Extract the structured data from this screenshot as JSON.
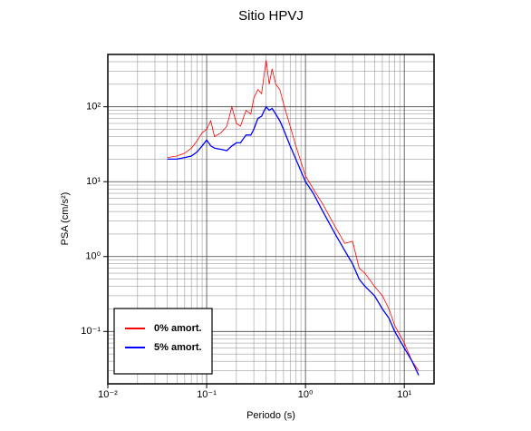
{
  "chart_data": {
    "type": "line",
    "title": "Sitio HPVJ",
    "x_label": "Periodo (s)",
    "y_label": "PSA (cm/s²)",
    "log_x": true,
    "log_y": true,
    "grid": true,
    "legend": "lower left",
    "xlim": [
      0.01,
      20
    ],
    "ylim": [
      0.02,
      500
    ],
    "xticks": [
      {
        "value": 0.01,
        "label": "10⁻²"
      },
      {
        "value": 0.1,
        "label": "10⁻¹"
      },
      {
        "value": 1,
        "label": "10⁰"
      },
      {
        "value": 10,
        "label": "10¹"
      }
    ],
    "yticks": [
      {
        "value": 0.1,
        "label": "10⁻¹"
      },
      {
        "value": 1,
        "label": "10⁰"
      },
      {
        "value": 10,
        "label": "10¹"
      },
      {
        "value": 100,
        "label": "10²"
      }
    ],
    "xticks_minor": [
      0.02,
      0.03,
      0.04,
      0.05,
      0.06,
      0.07,
      0.08,
      0.09,
      0.2,
      0.3,
      0.4,
      0.5,
      0.6,
      0.7,
      0.8,
      0.9,
      2,
      3,
      4,
      5,
      6,
      7,
      8,
      9
    ],
    "yticks_minor": [
      0.03,
      0.04,
      0.05,
      0.06,
      0.07,
      0.08,
      0.09,
      0.2,
      0.3,
      0.4,
      0.5,
      0.6,
      0.7,
      0.8,
      0.9,
      2,
      3,
      4,
      5,
      6,
      7,
      8,
      9,
      20,
      30,
      40,
      50,
      60,
      70,
      80,
      90,
      200,
      300,
      400
    ],
    "x": [
      0.04,
      0.05,
      0.06,
      0.07,
      0.08,
      0.09,
      0.1,
      0.11,
      0.12,
      0.14,
      0.16,
      0.18,
      0.2,
      0.22,
      0.25,
      0.28,
      0.3,
      0.33,
      0.36,
      0.4,
      0.43,
      0.46,
      0.5,
      0.55,
      0.6,
      0.7,
      0.8,
      1.0,
      1.2,
      1.5,
      2,
      2.5,
      3,
      3.5,
      4,
      5,
      6,
      7,
      8,
      10,
      12,
      14
    ],
    "series": [
      {
        "name": "0% amort.",
        "color": "#ff0000",
        "values": [
          21,
          22,
          24,
          28,
          35,
          45,
          50,
          65,
          40,
          45,
          55,
          100,
          60,
          55,
          90,
          80,
          130,
          170,
          150,
          420,
          200,
          320,
          200,
          170,
          110,
          55,
          30,
          12,
          8,
          5,
          2.5,
          1.5,
          1.6,
          0.7,
          0.6,
          0.4,
          0.3,
          0.2,
          0.12,
          0.07,
          0.04,
          0.03
        ]
      },
      {
        "name": "5% amort.",
        "color": "#0000ff",
        "values": [
          20,
          20,
          21,
          22,
          25,
          30,
          36,
          30,
          28,
          27,
          26,
          30,
          33,
          33,
          42,
          42,
          50,
          70,
          75,
          100,
          90,
          95,
          80,
          65,
          50,
          30,
          20,
          10,
          7,
          4,
          2,
          1.2,
          0.8,
          0.5,
          0.4,
          0.3,
          0.2,
          0.15,
          0.1,
          0.06,
          0.04,
          0.026
        ]
      }
    ]
  }
}
